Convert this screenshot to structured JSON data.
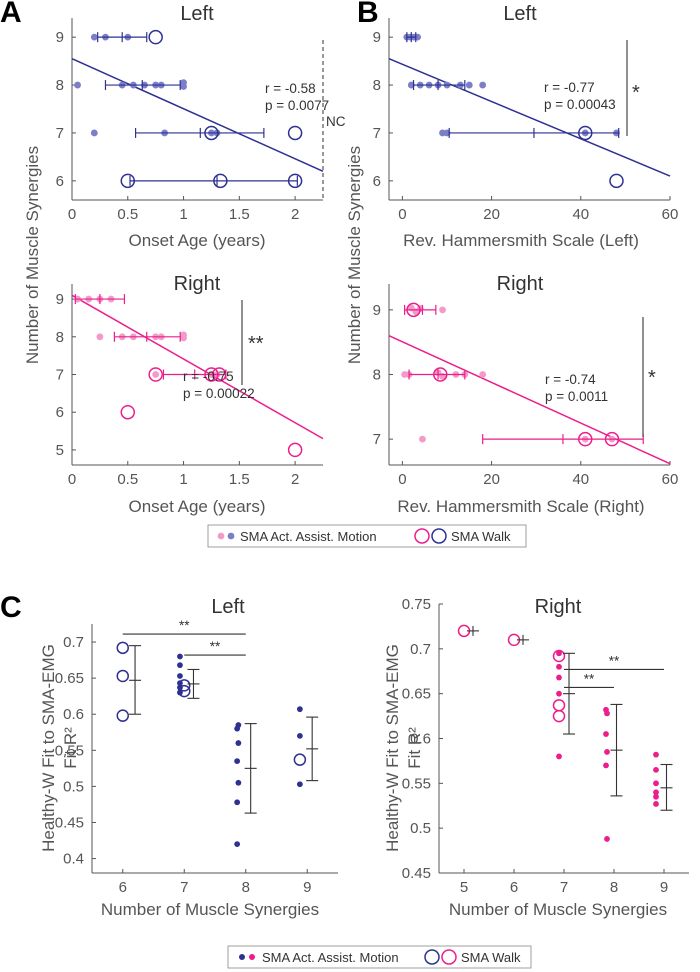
{
  "colors": {
    "navy": "#2e3192",
    "navy_light": "#7b7fc8",
    "pink": "#ec1e8c",
    "pink_light": "#f39ac8",
    "axis": "#555555"
  },
  "legends": {
    "ab": {
      "filled": "SMA Act. Assist. Motion",
      "open": "SMA Walk"
    },
    "c": {
      "filled": "SMA Act. Assist. Motion",
      "open": "SMA Walk"
    }
  },
  "chart_data": [
    {
      "id": "A-left",
      "panel_letter": "A",
      "type": "scatter",
      "title": "Left",
      "color": "navy",
      "xlabel": "Onset Age (years)",
      "ylabel": "Number of Muscle Synergies",
      "xlim": [
        0,
        2.25
      ],
      "ylim": [
        5.6,
        9.4
      ],
      "xticks": [
        "0",
        "0.5",
        "1",
        "1.5",
        "2"
      ],
      "yticks": [
        "6",
        "7",
        "8",
        "9"
      ],
      "filled": [
        [
          0.05,
          8
        ],
        [
          0.2,
          9
        ],
        [
          0.3,
          9
        ],
        [
          0.5,
          9
        ],
        [
          0.2,
          7
        ],
        [
          0.45,
          8
        ],
        [
          0.55,
          8
        ],
        [
          0.65,
          8
        ],
        [
          0.75,
          8
        ],
        [
          0.8,
          8
        ],
        [
          1.0,
          8.05
        ],
        [
          1.0,
          7.97
        ],
        [
          0.83,
          7
        ],
        [
          1.25,
          7
        ],
        [
          1.3,
          7
        ]
      ],
      "open": [
        [
          0.75,
          9
        ],
        [
          1.25,
          7
        ],
        [
          2.0,
          7
        ],
        [
          0.5,
          6
        ],
        [
          1.33,
          6
        ],
        [
          2.0,
          6
        ]
      ],
      "errorbars": [
        {
          "y": 9,
          "mean": 0.45,
          "lo": 0.23,
          "hi": 0.67
        },
        {
          "y": 8,
          "mean": 0.63,
          "lo": 0.3,
          "hi": 0.97
        },
        {
          "y": 7,
          "mean": 1.15,
          "lo": 0.57,
          "hi": 1.72
        },
        {
          "y": 6,
          "mean": 1.3,
          "lo": 0.52,
          "hi": 2.02
        }
      ],
      "fit": {
        "x1": 0,
        "y1": 8.55,
        "x2": 2.25,
        "y2": 6.2
      },
      "r_text": "r = -0.58",
      "p_text": "p = 0.0077",
      "sig": "NC"
    },
    {
      "id": "A-right",
      "type": "scatter",
      "title": "Right",
      "color": "pink",
      "xlabel": "Onset Age (years)",
      "ylabel": "",
      "xlim": [
        0,
        2.25
      ],
      "ylim": [
        4.6,
        9.4
      ],
      "xticks": [
        "0",
        "0.5",
        "1",
        "1.5",
        "2"
      ],
      "yticks": [
        "5",
        "6",
        "7",
        "8",
        "9"
      ],
      "filled": [
        [
          0.05,
          9
        ],
        [
          0.15,
          9
        ],
        [
          0.25,
          9
        ],
        [
          0.35,
          9
        ],
        [
          0.25,
          8
        ],
        [
          0.45,
          8
        ],
        [
          0.55,
          8
        ],
        [
          0.75,
          8
        ],
        [
          0.8,
          8
        ],
        [
          1.0,
          8.05
        ],
        [
          1.0,
          7.97
        ],
        [
          0.75,
          7
        ],
        [
          1.25,
          7
        ],
        [
          1.3,
          7
        ]
      ],
      "open": [
        [
          0.75,
          7
        ],
        [
          1.25,
          7
        ],
        [
          1.32,
          7
        ],
        [
          0.5,
          6
        ],
        [
          2.0,
          5
        ]
      ],
      "errorbars": [
        {
          "y": 9,
          "mean": 0.25,
          "lo": 0.03,
          "hi": 0.47
        },
        {
          "y": 8,
          "mean": 0.67,
          "lo": 0.38,
          "hi": 0.97
        },
        {
          "y": 7,
          "mean": 1.1,
          "lo": 0.82,
          "hi": 1.38
        }
      ],
      "fit": {
        "x1": 0,
        "y1": 9.1,
        "x2": 2.25,
        "y2": 5.3
      },
      "r_text": "r = -0.75",
      "p_text": "p = 0.00022",
      "sig": "**"
    },
    {
      "id": "B-left",
      "panel_letter": "B",
      "type": "scatter",
      "title": "Left",
      "color": "navy",
      "xlabel": "Rev. Hammersmith Scale (Left)",
      "ylabel": "Number of Muscle Synergies",
      "xlim": [
        -3,
        60
      ],
      "ylim": [
        5.6,
        9.4
      ],
      "xticks": [
        "0",
        "20",
        "40",
        "60"
      ],
      "yticks": [
        "6",
        "7",
        "8",
        "9"
      ],
      "filled": [
        [
          1,
          9
        ],
        [
          1.8,
          9
        ],
        [
          2.6,
          9
        ],
        [
          3.4,
          9
        ],
        [
          2,
          8
        ],
        [
          4,
          8
        ],
        [
          6,
          8
        ],
        [
          8,
          8
        ],
        [
          10,
          8
        ],
        [
          13,
          8
        ],
        [
          15,
          8
        ],
        [
          18,
          8
        ],
        [
          9,
          7
        ],
        [
          10,
          7
        ],
        [
          41,
          7
        ],
        [
          48,
          7
        ]
      ],
      "open": [
        [
          41,
          7
        ],
        [
          48,
          6
        ]
      ],
      "errorbars": [
        {
          "y": 9,
          "mean": 2,
          "lo": 1,
          "hi": 3
        },
        {
          "y": 8,
          "mean": 8,
          "lo": 2.5,
          "hi": 14
        },
        {
          "y": 7,
          "mean": 29.5,
          "lo": 10.5,
          "hi": 48.5
        }
      ],
      "fit": {
        "x1": -3,
        "y1": 8.55,
        "x2": 60,
        "y2": 6.1
      },
      "r_text": "r = -0.77",
      "p_text": "p = 0.00043",
      "sig": "*"
    },
    {
      "id": "B-right",
      "type": "scatter",
      "title": "Right",
      "color": "pink",
      "xlabel": "Rev. Hammersmith Scale (Right)",
      "ylabel": "",
      "xlim": [
        -3,
        60
      ],
      "ylim": [
        6.6,
        9.4
      ],
      "xticks": [
        "0",
        "20",
        "40",
        "60"
      ],
      "yticks": [
        "7",
        "8",
        "9"
      ],
      "filled": [
        [
          2,
          9.03
        ],
        [
          3,
          8.97
        ],
        [
          4,
          9.02
        ],
        [
          9,
          9
        ],
        [
          0.5,
          8
        ],
        [
          1.5,
          8
        ],
        [
          8,
          8.03
        ],
        [
          9,
          7.97
        ],
        [
          12,
          8
        ],
        [
          14,
          8
        ],
        [
          18,
          8
        ],
        [
          4.5,
          7
        ],
        [
          41,
          7
        ],
        [
          47,
          7
        ]
      ],
      "open": [
        [
          2.5,
          9
        ],
        [
          8.5,
          8
        ],
        [
          41,
          7
        ],
        [
          47,
          7
        ]
      ],
      "errorbars": [
        {
          "y": 9,
          "mean": 4.5,
          "lo": 0.5,
          "hi": 7.5
        },
        {
          "y": 8,
          "mean": 8,
          "lo": 1.5,
          "hi": 14
        },
        {
          "y": 7,
          "mean": 36,
          "lo": 18,
          "hi": 54
        }
      ],
      "fit": {
        "x1": -3,
        "y1": 8.6,
        "x2": 60,
        "y2": 6.62
      },
      "r_text": "r = -0.74",
      "p_text": "p = 0.0011",
      "sig": "*"
    },
    {
      "id": "C-left",
      "panel_letter": "C",
      "type": "scatter",
      "title": "Left",
      "color": "navy",
      "xlabel": "Number of Muscle Synergies",
      "ylabel": "Healthy-W Fit to SMA-EMG Fit R²",
      "xlim": [
        5.5,
        9.5
      ],
      "ylim": [
        0.38,
        0.725
      ],
      "xticks": [
        "6",
        "7",
        "8",
        "9"
      ],
      "yticks": [
        "0.4",
        "0.45",
        "0.5",
        "0.55",
        "0.6",
        "0.65",
        "0.7"
      ],
      "filled": [
        [
          6.93,
          0.68
        ],
        [
          6.93,
          0.668
        ],
        [
          6.93,
          0.653
        ],
        [
          6.93,
          0.643
        ],
        [
          6.93,
          0.637
        ],
        [
          6.93,
          0.63
        ],
        [
          7.88,
          0.585
        ],
        [
          7.86,
          0.58
        ],
        [
          7.88,
          0.56
        ],
        [
          7.86,
          0.535
        ],
        [
          7.88,
          0.505
        ],
        [
          7.86,
          0.478
        ],
        [
          7.86,
          0.42
        ],
        [
          8.88,
          0.607
        ],
        [
          8.88,
          0.57
        ],
        [
          8.88,
          0.503
        ]
      ],
      "open": [
        [
          6.0,
          0.692
        ],
        [
          6.0,
          0.653
        ],
        [
          6.0,
          0.598
        ],
        [
          7.0,
          0.64
        ],
        [
          7.0,
          0.632
        ],
        [
          8.88,
          0.537
        ]
      ],
      "errorbars": [
        {
          "x": 6.2,
          "mean": 0.647,
          "lo": 0.6,
          "hi": 0.695
        },
        {
          "x": 7.15,
          "mean": 0.642,
          "lo": 0.622,
          "hi": 0.662
        },
        {
          "x": 8.08,
          "mean": 0.525,
          "lo": 0.463,
          "hi": 0.587
        },
        {
          "x": 9.08,
          "mean": 0.552,
          "lo": 0.508,
          "hi": 0.596
        }
      ],
      "sig_bars": [
        {
          "x1": 6.0,
          "x2": 8.0,
          "y": 0.711,
          "label": "**"
        },
        {
          "x1": 7.0,
          "x2": 8.0,
          "y": 0.682,
          "label": "**"
        }
      ]
    },
    {
      "id": "C-right",
      "type": "scatter",
      "title": "Right",
      "color": "pink",
      "xlabel": "Number of Muscle Synergies",
      "ylabel": "Healthy-W Fit to SMA-EMG Fit R²",
      "xlim": [
        4.5,
        9.5
      ],
      "ylim": [
        0.45,
        0.75
      ],
      "xticks": [
        "5",
        "6",
        "7",
        "8",
        "9"
      ],
      "yticks": [
        "0.45",
        "0.5",
        "0.55",
        "0.6",
        "0.65",
        "0.7",
        "0.75"
      ],
      "filled": [
        [
          6.9,
          0.695
        ],
        [
          6.9,
          0.68
        ],
        [
          6.9,
          0.668
        ],
        [
          6.9,
          0.65
        ],
        [
          6.9,
          0.58
        ],
        [
          7.84,
          0.632
        ],
        [
          7.86,
          0.628
        ],
        [
          7.84,
          0.605
        ],
        [
          7.86,
          0.585
        ],
        [
          7.84,
          0.57
        ],
        [
          7.86,
          0.488
        ],
        [
          8.84,
          0.582
        ],
        [
          8.84,
          0.565
        ],
        [
          8.84,
          0.55
        ],
        [
          8.84,
          0.54
        ],
        [
          8.84,
          0.535
        ],
        [
          8.84,
          0.527
        ]
      ],
      "open": [
        [
          5.0,
          0.72
        ],
        [
          6.0,
          0.71
        ],
        [
          6.9,
          0.692
        ],
        [
          6.9,
          0.637
        ],
        [
          6.9,
          0.625
        ]
      ],
      "errorbars": [
        {
          "x": 5.18,
          "mean": 0.72,
          "lo": 0.72,
          "hi": 0.72
        },
        {
          "x": 6.18,
          "mean": 0.71,
          "lo": 0.71,
          "hi": 0.71
        },
        {
          "x": 7.1,
          "mean": 0.65,
          "lo": 0.605,
          "hi": 0.695
        },
        {
          "x": 8.05,
          "mean": 0.587,
          "lo": 0.536,
          "hi": 0.638
        },
        {
          "x": 9.05,
          "mean": 0.545,
          "lo": 0.52,
          "hi": 0.571
        }
      ],
      "sig_bars": [
        {
          "x1": 7.0,
          "x2": 9.0,
          "y": 0.677,
          "label": "**"
        },
        {
          "x1": 7.0,
          "x2": 8.0,
          "y": 0.657,
          "label": "**"
        }
      ]
    }
  ]
}
